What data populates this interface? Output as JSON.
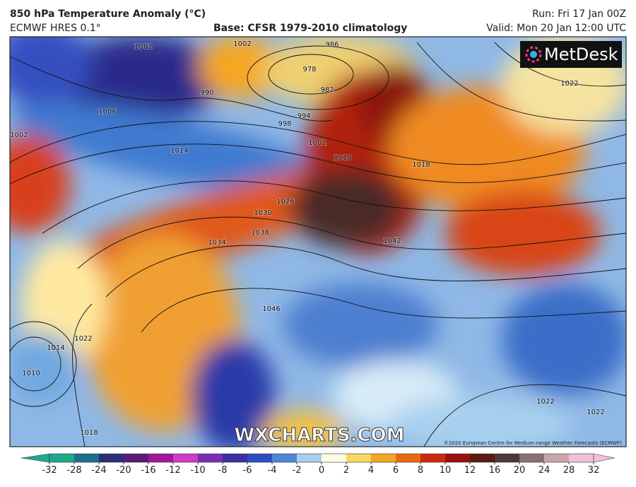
{
  "header": {
    "title": "850 hPa Temperature Anomaly (°C)",
    "model": "ECMWF HRES 0.1°",
    "base": "Base: CFSR 1979-2010 climatology",
    "run": "Run: Fri 17 Jan 00Z",
    "valid": "Valid: Mon 20 Jan 12:00 UTC"
  },
  "logo": "MetDesk",
  "watermark": "WXCHARTS.COM",
  "copyright": "©2020 European Centre for Medium-range Weather Forecasts (ECMWF)",
  "colorbar": {
    "ticks": [
      -32,
      -28,
      -24,
      -20,
      -16,
      -12,
      -10,
      -8,
      -6,
      -4,
      -2,
      0,
      2,
      4,
      6,
      8,
      10,
      12,
      16,
      20,
      24,
      28,
      32
    ],
    "colors": [
      "#1fa88a",
      "#1f6e8c",
      "#2a2f7a",
      "#5b1a78",
      "#a0189a",
      "#d23ac8",
      "#7a2fb0",
      "#3b2fa0",
      "#2c4fc0",
      "#4f86d8",
      "#a9cdea",
      "#fffde0",
      "#f8d765",
      "#f5a623",
      "#e86a12",
      "#cc2a0c",
      "#9a120c",
      "#5a1a14",
      "#4a3a3a",
      "#8a7070",
      "#c8a6a8",
      "#f0c0d8"
    ]
  },
  "isobar_labels": [
    "1002",
    "1002",
    "986",
    "978",
    "982",
    "994",
    "998",
    "1002",
    "1006",
    "1014",
    "1002",
    "990",
    "1022",
    "1018",
    "1026",
    "1030",
    "1034",
    "1038",
    "1042",
    "1046",
    "1014",
    "1010",
    "1022",
    "1018",
    "1022",
    "1022",
    "1010"
  ]
}
